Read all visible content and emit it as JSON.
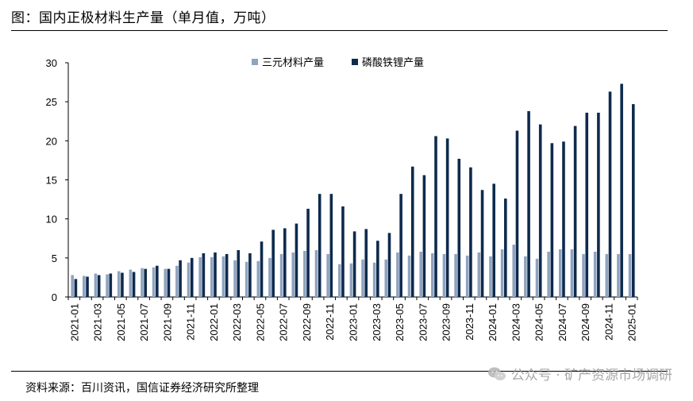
{
  "header": {
    "title": "图：国内正极材料生产量（单月值，万吨）"
  },
  "footer": {
    "source": "资料来源：百川资讯，国信证券经济研究所整理"
  },
  "watermark": {
    "text": "公众号 · 矿产资源市场调研",
    "icon": "wechat-icon"
  },
  "chart_data": {
    "type": "bar",
    "title": "",
    "xlabel": "",
    "ylabel": "",
    "ylim": [
      0,
      30
    ],
    "yticks": [
      0,
      5,
      10,
      15,
      20,
      25,
      30
    ],
    "legend_position": "top-center",
    "categories": [
      "2021-01",
      "2021-02",
      "2021-03",
      "2021-04",
      "2021-05",
      "2021-06",
      "2021-07",
      "2021-08",
      "2021-09",
      "2021-10",
      "2021-11",
      "2021-12",
      "2022-01",
      "2022-02",
      "2022-03",
      "2022-04",
      "2022-05",
      "2022-06",
      "2022-07",
      "2022-08",
      "2022-09",
      "2022-10",
      "2022-11",
      "2022-12",
      "2023-01",
      "2023-02",
      "2023-03",
      "2023-04",
      "2023-05",
      "2023-06",
      "2023-07",
      "2023-08",
      "2023-09",
      "2023-10",
      "2023-11",
      "2023-12",
      "2024-01",
      "2024-02",
      "2024-03",
      "2024-04",
      "2024-05",
      "2024-06",
      "2024-07",
      "2024-08",
      "2024-09",
      "2024-10",
      "2024-11",
      "2024-12",
      "2025-01"
    ],
    "tick_labels": [
      "2021-01",
      "2021-03",
      "2021-05",
      "2021-07",
      "2021-09",
      "2021-11",
      "2022-01",
      "2022-03",
      "2022-05",
      "2022-07",
      "2022-09",
      "2022-11",
      "2023-01",
      "2023-03",
      "2023-05",
      "2023-07",
      "2023-09",
      "2023-11",
      "2024-01",
      "2024-03",
      "2024-05",
      "2024-07",
      "2024-09",
      "2024-11",
      "2025-01"
    ],
    "series": [
      {
        "name": "三元材料产量",
        "color": "#8fa3bf",
        "values": [
          2.8,
          2.7,
          3.0,
          2.9,
          3.3,
          3.5,
          3.7,
          3.8,
          3.6,
          4.0,
          4.4,
          5.1,
          5.1,
          5.2,
          4.7,
          4.5,
          4.6,
          5.0,
          5.5,
          5.7,
          5.9,
          6.0,
          5.5,
          4.2,
          4.3,
          4.8,
          4.4,
          4.8,
          5.7,
          5.3,
          5.8,
          5.6,
          5.5,
          5.5,
          5.3,
          5.7,
          5.2,
          6.1,
          6.7,
          5.2,
          4.9,
          5.8,
          6.1,
          6.1,
          5.5,
          5.8,
          5.5,
          5.5,
          5.5
        ]
      },
      {
        "name": "磷酸铁锂产量",
        "color": "#0e2a4d",
        "values": [
          2.3,
          2.6,
          2.8,
          3.0,
          3.1,
          3.2,
          3.6,
          4.0,
          3.6,
          4.7,
          5.0,
          5.6,
          5.7,
          5.5,
          6.0,
          5.6,
          7.1,
          8.6,
          8.8,
          9.4,
          11.3,
          13.2,
          13.2,
          11.6,
          8.4,
          8.7,
          7.2,
          8.2,
          13.2,
          16.7,
          15.6,
          20.6,
          20.3,
          17.7,
          16.6,
          13.7,
          14.5,
          12.6,
          21.3,
          23.8,
          22.1,
          19.7,
          19.9,
          21.9,
          23.6,
          23.6,
          26.3,
          27.3,
          24.7
        ]
      }
    ]
  }
}
